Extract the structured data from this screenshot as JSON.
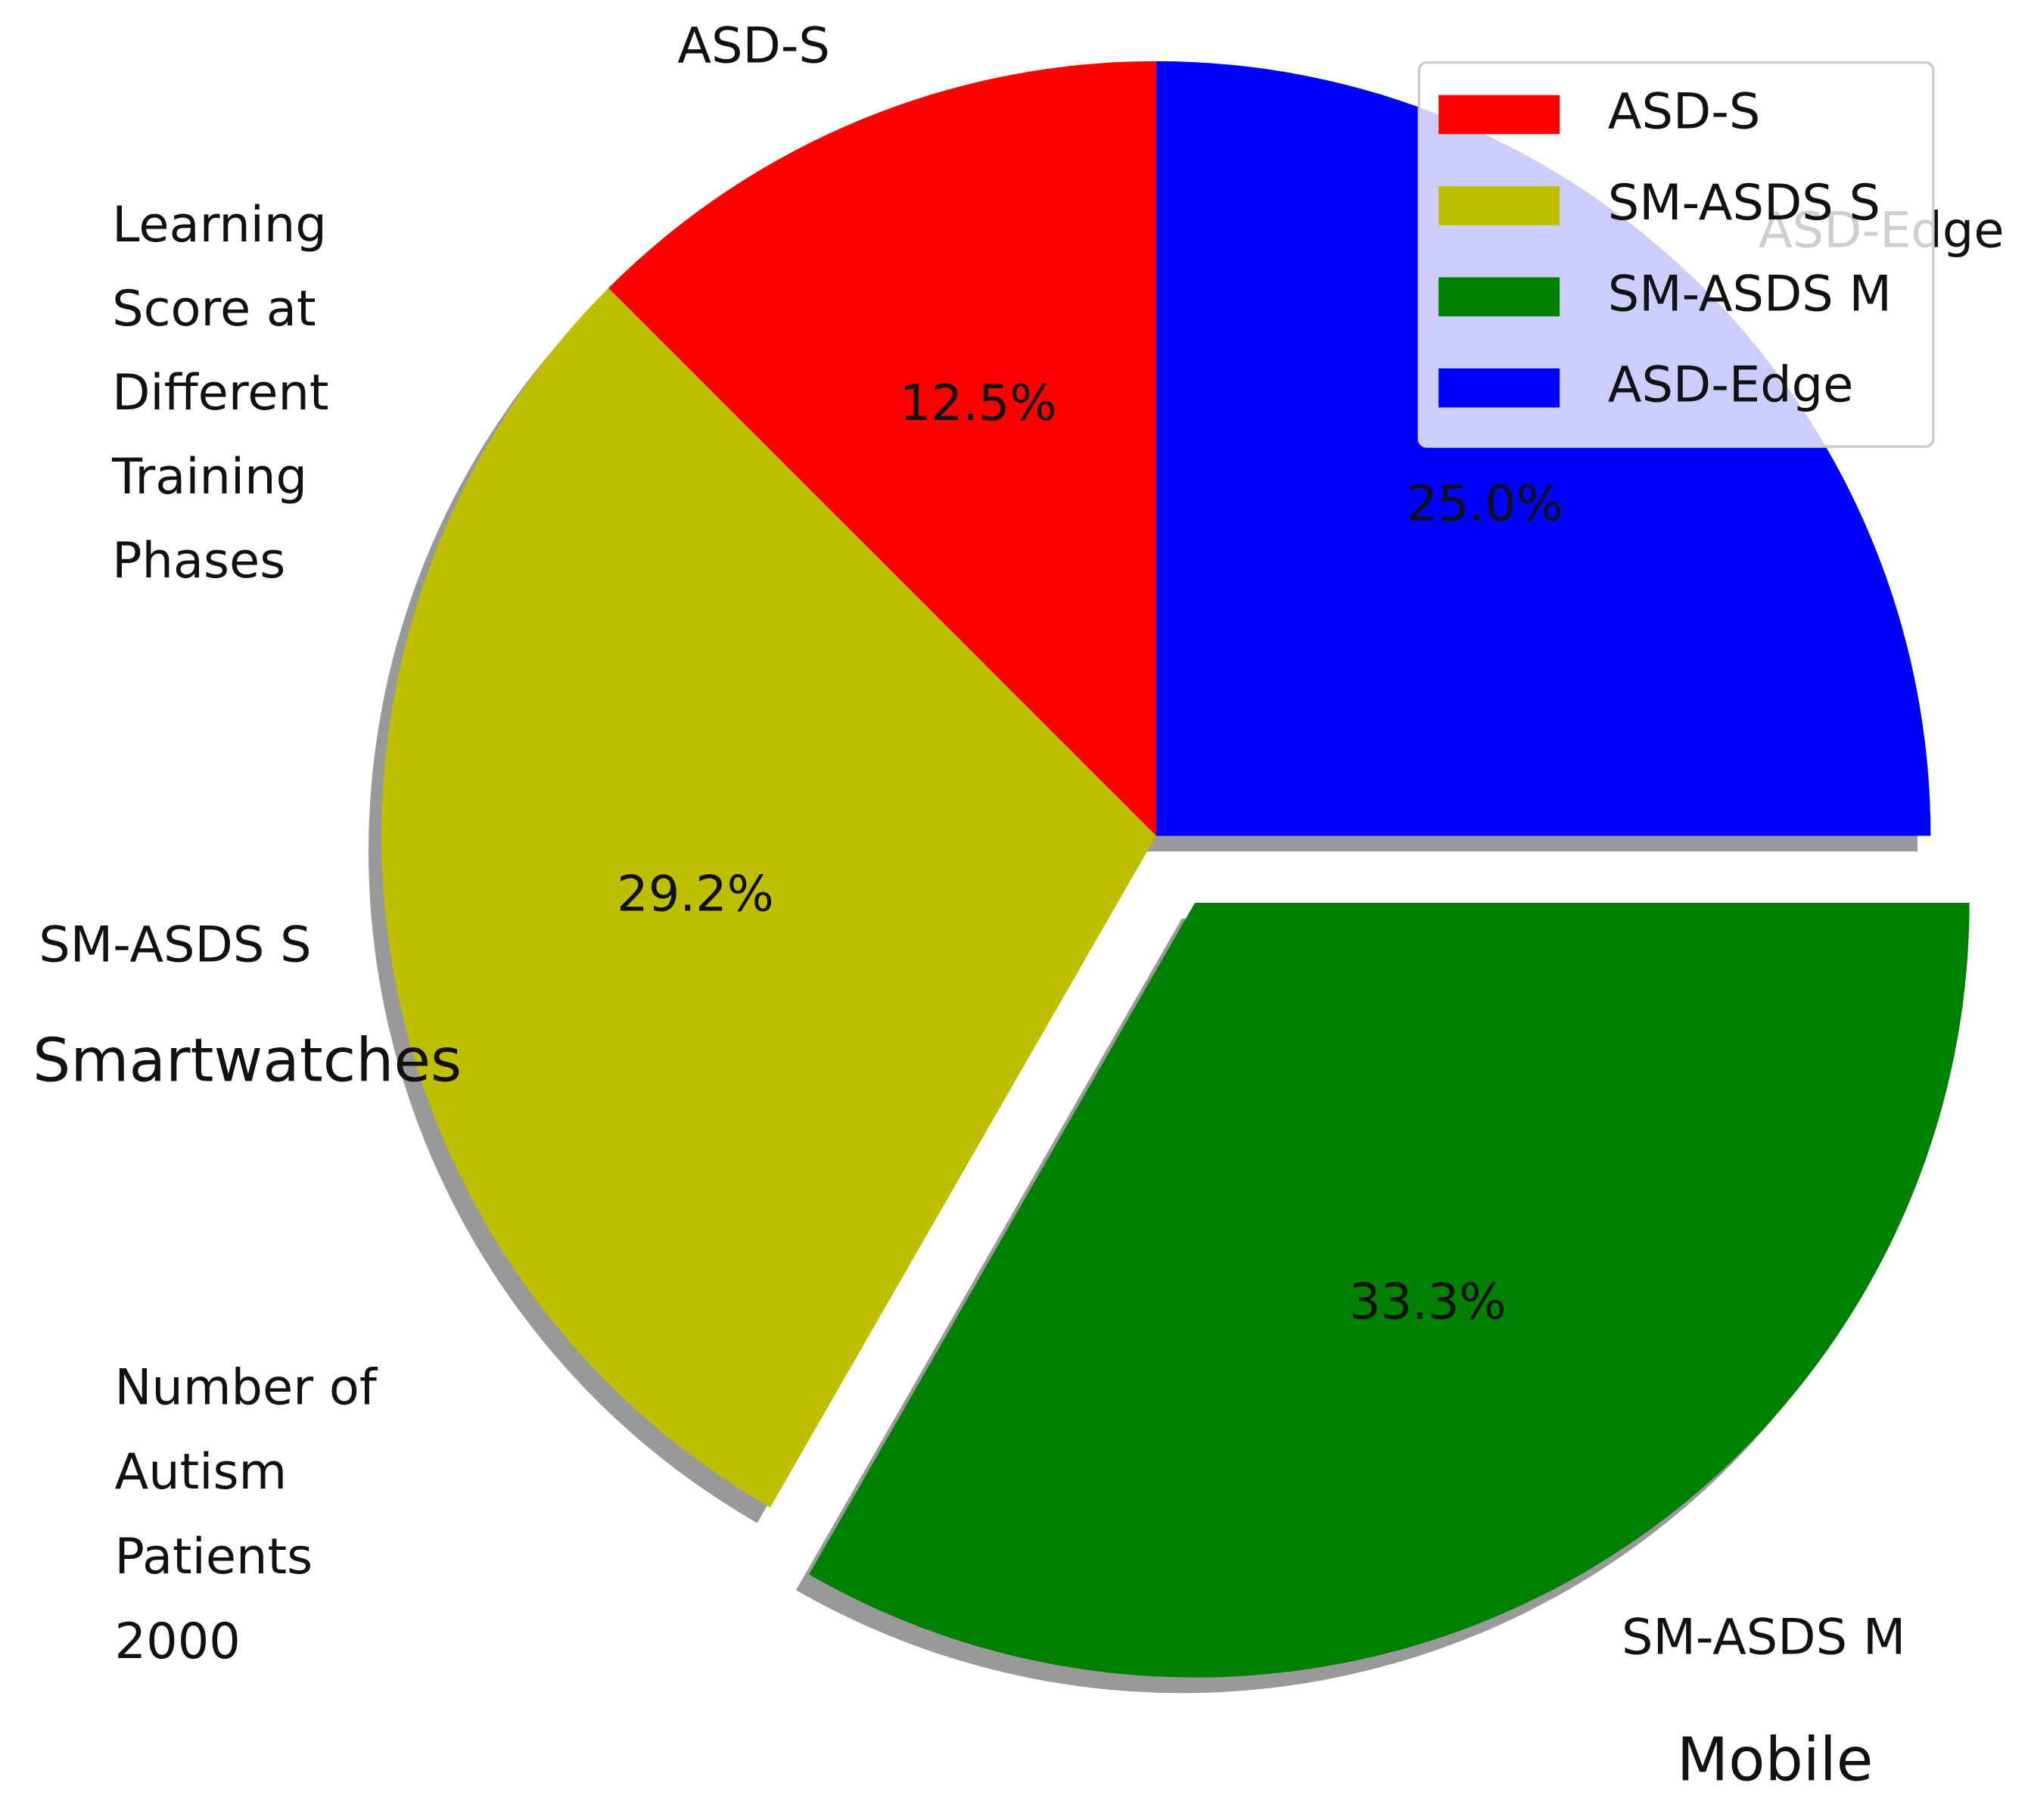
{
  "chart_data": {
    "type": "pie",
    "categories": [
      "ASD-S",
      "SM-ASDS S",
      "SM-ASDS M",
      "ASD-Edge"
    ],
    "values": [
      12.5,
      29.2,
      33.3,
      25.0
    ],
    "value_labels": [
      "12.5%",
      "29.2%",
      "33.3%",
      "25.0%"
    ],
    "colors": [
      "#ff0000",
      "#bfbf00",
      "#008000",
      "#0000ff"
    ],
    "exploded": [
      false,
      false,
      true,
      false
    ],
    "shadow": true,
    "legend": "upper right",
    "annotations": [
      [
        "Learning",
        "Score at",
        "Different",
        "Training",
        "Phases"
      ],
      [
        "Smartwatches"
      ],
      [
        "Number of",
        "Autism",
        "Patients",
        "2000"
      ],
      [
        "Mobile"
      ]
    ]
  }
}
